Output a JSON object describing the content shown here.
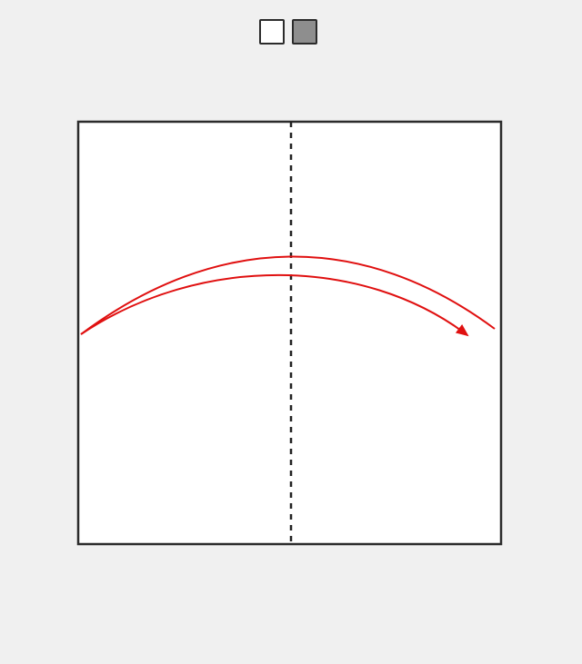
{
  "diagram": {
    "type": "origami-fold-step",
    "colors": {
      "paper_front": "#ffffff",
      "paper_back": "#8e8e8e",
      "outline": "#2b2b2b",
      "fold_line": "#222222",
      "arrow": "#e01010",
      "background": "#f0f0f0"
    },
    "legend": [
      {
        "side": "front",
        "color": "#ffffff"
      },
      {
        "side": "back",
        "color": "#8e8e8e"
      }
    ],
    "paper": {
      "shape": "square"
    },
    "fold_line": {
      "style": "valley",
      "orientation": "vertical",
      "position": "center"
    },
    "arrow": {
      "direction": "left-to-right",
      "kind": "fold-over"
    }
  }
}
